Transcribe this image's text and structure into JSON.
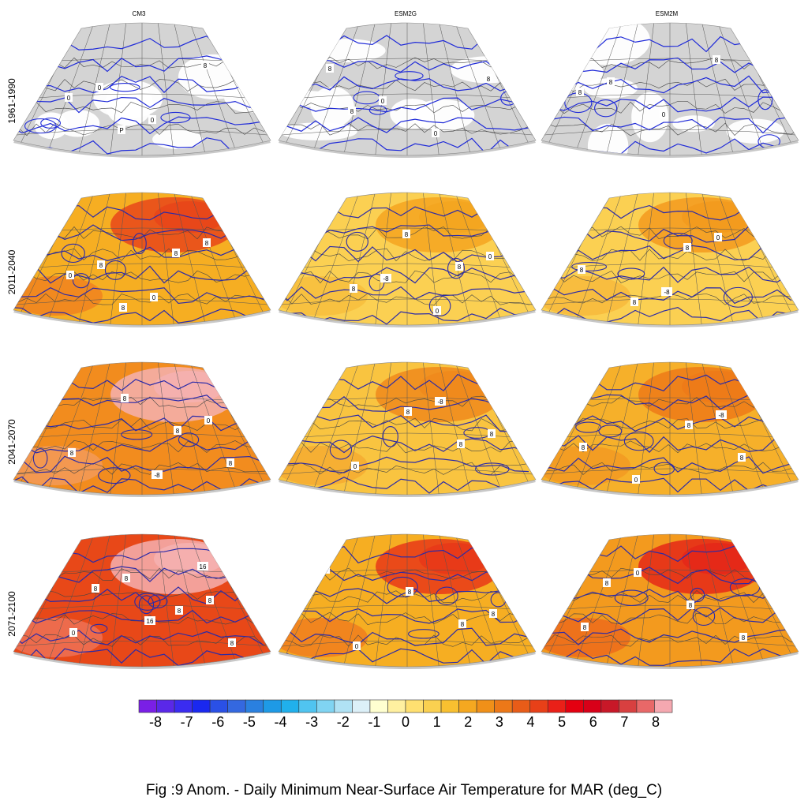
{
  "figure": {
    "columns": [
      "CM3",
      "ESM2G",
      "ESM2M"
    ],
    "rows": [
      "1961-1990",
      "2011-2040",
      "2041-2070",
      "2071-2100"
    ],
    "caption": "Fig :9  Anom.  - Daily Minimum Near-Surface Air Temperature for MAR (deg_C)"
  },
  "colorbar": {
    "labels": [
      "-8",
      "-7",
      "-6",
      "-5",
      "-4",
      "-3",
      "-2",
      "-1",
      "0",
      "1",
      "2",
      "3",
      "4",
      "5",
      "6",
      "7",
      "8"
    ],
    "colors": [
      "#7a1fe6",
      "#5a28e8",
      "#3a2cf0",
      "#1a28f0",
      "#2a50e6",
      "#3468e0",
      "#2a80e0",
      "#1e9ae6",
      "#20b0ec",
      "#50c4f0",
      "#80d4f2",
      "#b0e2f4",
      "#dcf0f8",
      "#ffffd0",
      "#fff0a0",
      "#ffe070",
      "#fad050",
      "#f8c030",
      "#f5a820",
      "#f09018",
      "#ec7818",
      "#e85c18",
      "#e84018",
      "#ea2018",
      "#e40010",
      "#d80018",
      "#c81828",
      "#d84040",
      "#e86868",
      "#f5a8b0"
    ]
  },
  "panels": [
    {
      "row": 0,
      "col": 0,
      "fill": "#d4d4d4",
      "hot_zone": false,
      "contour_labels": [
        "8",
        "0",
        "0",
        "8",
        "0",
        "P"
      ]
    },
    {
      "row": 0,
      "col": 1,
      "fill": "#d4d4d4",
      "hot_zone": false,
      "contour_labels": [
        "8",
        "0",
        "0",
        "8",
        "8"
      ]
    },
    {
      "row": 0,
      "col": 2,
      "fill": "#d4d4d4",
      "hot_zone": false,
      "contour_labels": [
        "8",
        "0",
        "8",
        "8"
      ]
    },
    {
      "row": 1,
      "col": 0,
      "fill": "#f6ae22",
      "hot_zone": true,
      "hot_color": "#e8461a",
      "contour_labels": [
        "8",
        "0",
        "8",
        "0",
        "8",
        "8"
      ]
    },
    {
      "row": 1,
      "col": 1,
      "fill": "#fbd052",
      "hot_zone": true,
      "hot_color": "#f4a520",
      "contour_labels": [
        "-8",
        "0",
        "0",
        "8",
        "8",
        "8"
      ]
    },
    {
      "row": 1,
      "col": 2,
      "fill": "#fbd052",
      "hot_zone": true,
      "hot_color": "#f39a1e",
      "contour_labels": [
        "-8",
        "0",
        "8",
        "8",
        "8"
      ]
    },
    {
      "row": 2,
      "col": 0,
      "fill": "#f28c1e",
      "hot_zone": true,
      "hot_color": "#f5b0b0",
      "contour_labels": [
        "-8",
        "0",
        "8",
        "8",
        "8",
        "8"
      ]
    },
    {
      "row": 2,
      "col": 1,
      "fill": "#f9c440",
      "hot_zone": true,
      "hot_color": "#f08a1c",
      "contour_labels": [
        "-8",
        "8",
        "0",
        "8",
        "8"
      ]
    },
    {
      "row": 2,
      "col": 2,
      "fill": "#f6b02a",
      "hot_zone": true,
      "hot_color": "#ed7a18",
      "contour_labels": [
        "-8",
        "8",
        "0",
        "8",
        "8"
      ]
    },
    {
      "row": 3,
      "col": 0,
      "fill": "#e84818",
      "hot_zone": true,
      "hot_color": "#f5b0b0",
      "contour_labels": [
        "8",
        "0",
        "8",
        "8",
        "8",
        "8",
        "16",
        "16"
      ]
    },
    {
      "row": 3,
      "col": 1,
      "fill": "#f6ae22",
      "hot_zone": true,
      "hot_color": "#e83818",
      "contour_labels": [
        "8",
        "0",
        "8",
        "8",
        "8"
      ]
    },
    {
      "row": 3,
      "col": 2,
      "fill": "#f39a1e",
      "hot_zone": true,
      "hot_color": "#e42818",
      "contour_labels": [
        "8",
        "0",
        "8",
        "8",
        "8"
      ]
    }
  ]
}
